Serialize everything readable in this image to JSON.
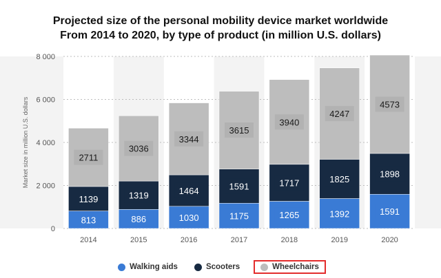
{
  "chart_data": {
    "type": "bar",
    "stacked": true,
    "title": "Projected size of the personal mobility device market worldwide",
    "subtitle": "From 2014 to 2020, by type of product (in million U.S. dollars)",
    "ylabel": "Market size in million U.S. dollars",
    "xlabel": "",
    "ylim": [
      0,
      8000
    ],
    "yticks": [
      0,
      2000,
      4000,
      6000,
      8000
    ],
    "ytick_labels": [
      "0",
      "2 000",
      "4 000",
      "6 000",
      "8 000"
    ],
    "grid": true,
    "legend_position": "bottom",
    "categories": [
      "2014",
      "2015",
      "2016",
      "2017",
      "2018",
      "2019",
      "2020"
    ],
    "series": [
      {
        "name": "Walking aids",
        "color": "#3a7bd5",
        "values": [
          813,
          886,
          1030,
          1175,
          1265,
          1392,
          1591
        ]
      },
      {
        "name": "Scooters",
        "color": "#172a42",
        "values": [
          1139,
          1319,
          1464,
          1591,
          1717,
          1825,
          1898
        ]
      },
      {
        "name": "Wheelchairs",
        "color": "#bdbdbd",
        "values": [
          2711,
          3036,
          3344,
          3615,
          3940,
          4247,
          4573
        ]
      }
    ],
    "highlighted_legend": "Wheelchairs"
  }
}
